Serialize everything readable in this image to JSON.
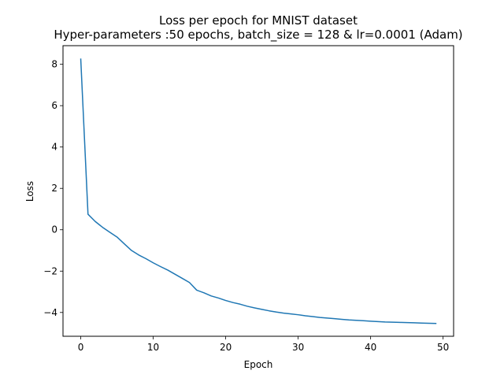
{
  "chart_data": {
    "type": "line",
    "title": "Loss per epoch for MNIST dataset",
    "subtitle": "Hyper-parameters :50 epochs, batch_size = 128 & lr=0.0001 (Adam)",
    "xlabel": "Epoch",
    "ylabel": "Loss",
    "xlim": [
      -2.45,
      51.45
    ],
    "ylim": [
      -5.15,
      8.9
    ],
    "xticks": [
      0,
      10,
      20,
      30,
      40,
      50
    ],
    "yticks": [
      -4,
      -2,
      0,
      2,
      4,
      6,
      8
    ],
    "xtick_labels": [
      "0",
      "10",
      "20",
      "30",
      "40",
      "50"
    ],
    "ytick_labels": [
      "−4",
      "−2",
      "0",
      "2",
      "4",
      "6",
      "8"
    ],
    "grid": false,
    "line_color": "#1f77b4",
    "series": [
      {
        "x": [
          0,
          1,
          2,
          3,
          4,
          5,
          6,
          7,
          8,
          9,
          10,
          11,
          12,
          13,
          14,
          15,
          16,
          17,
          18,
          19,
          20,
          21,
          22,
          23,
          24,
          25,
          26,
          27,
          28,
          29,
          30,
          31,
          32,
          33,
          34,
          35,
          36,
          37,
          38,
          39,
          40,
          41,
          42,
          43,
          44,
          45,
          46,
          47,
          48,
          49
        ],
        "values": [
          8.25,
          0.75,
          0.4,
          0.12,
          -0.12,
          -0.35,
          -0.68,
          -1.0,
          -1.22,
          -1.4,
          -1.6,
          -1.78,
          -1.95,
          -2.15,
          -2.35,
          -2.55,
          -2.92,
          -3.05,
          -3.2,
          -3.3,
          -3.42,
          -3.52,
          -3.6,
          -3.7,
          -3.78,
          -3.85,
          -3.92,
          -3.98,
          -4.03,
          -4.07,
          -4.11,
          -4.16,
          -4.2,
          -4.24,
          -4.27,
          -4.3,
          -4.33,
          -4.36,
          -4.38,
          -4.4,
          -4.42,
          -4.44,
          -4.46,
          -4.47,
          -4.48,
          -4.49,
          -4.5,
          -4.51,
          -4.52,
          -4.53
        ]
      }
    ]
  }
}
